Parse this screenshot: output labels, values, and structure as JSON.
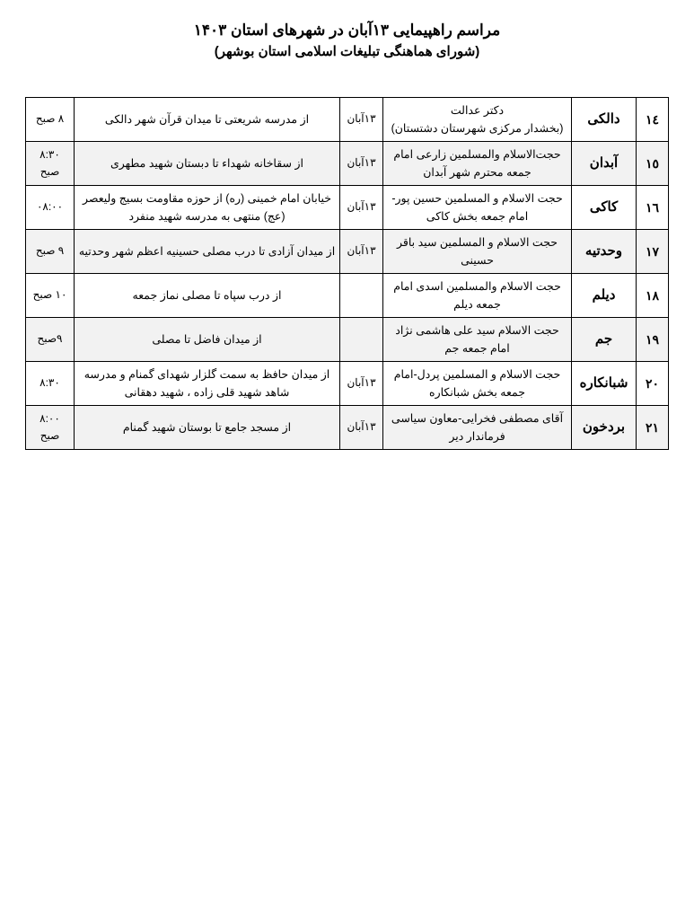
{
  "header": {
    "title": "مراسم راهپیمایی ۱۳آبان در شهرهای استان ۱۴۰۳",
    "subtitle": "(شورای هماهنگی تبلیغات اسلامی استان بوشهر)"
  },
  "rows": [
    {
      "num": "١٤",
      "city": "دالکی",
      "speaker": "دکتر عدالت\n(بخشدار مرکزی شهرستان دشتستان)",
      "date": "۱۳آبان",
      "route": "از مدرسه شریعتی تا میدان قرآن شهر دالکی",
      "time": "۸ صبح",
      "shade": false
    },
    {
      "num": "١٥",
      "city": "آبدان",
      "speaker": "حجت‌الاسلام والمسلمین زارعی امام جمعه محترم شهر آبدان",
      "date": "۱۳آبان",
      "route": "از سقاخانه شهداء تا دبستان شهید مطهری",
      "time": "۸:۳۰ صبح",
      "shade": true
    },
    {
      "num": "١٦",
      "city": "کاکی",
      "speaker": "حجت الاسلام و المسلمین حسین پور-امام جمعه بخش کاکی",
      "date": "۱۳آبان",
      "route": "خیابان امام خمینی (ره) از حوزه مقاومت بسیج ولیعصر (عج) منتهی به مدرسه شهید منفرد",
      "time": "۰۸:۰۰",
      "shade": false
    },
    {
      "num": "١٧",
      "city": "وحدتیه",
      "speaker": "حجت الاسلام و المسلمین سید باقر حسینی",
      "date": "۱۳آبان",
      "route": "از میدان آزادی تا درب مصلی حسینیه اعظم شهر وحدتیه",
      "time": "۹ صبح",
      "shade": true
    },
    {
      "num": "١٨",
      "city": "دیلم",
      "speaker": "حجت الاسلام والمسلمین اسدی امام جمعه دیلم",
      "date": "",
      "route": "از درب سپاه تا مصلی نماز جمعه",
      "time": "۱۰ صبح",
      "shade": false
    },
    {
      "num": "١٩",
      "city": "جم",
      "speaker": "حجت الاسلام سید علی هاشمی نژاد امام جمعه جم",
      "date": "",
      "route": "از میدان  فاضل  تا مصلی",
      "time": "۹صبح",
      "shade": true
    },
    {
      "num": "٢٠",
      "city": "شبانکاره",
      "speaker": "حجت الاسلام و المسلمین پردل-امام جمعه بخش شبانکاره",
      "date": "۱۳آبان",
      "route": "از میدان حافظ به سمت گلزار شهدای گمنام و مدرسه شاهد شهید قلی زاده ، شهید دهقانی",
      "time": "۸:۳۰",
      "shade": false
    },
    {
      "num": "٢١",
      "city": "بردخون",
      "speaker": "آقای مصطفی فخرایی-معاون سیاسی فرماندار دیر",
      "date": "۱۳آبان",
      "route": "از مسجد جامع تا بوستان شهید گمنام",
      "time": "۸:۰۰ صبح",
      "shade": true
    }
  ]
}
